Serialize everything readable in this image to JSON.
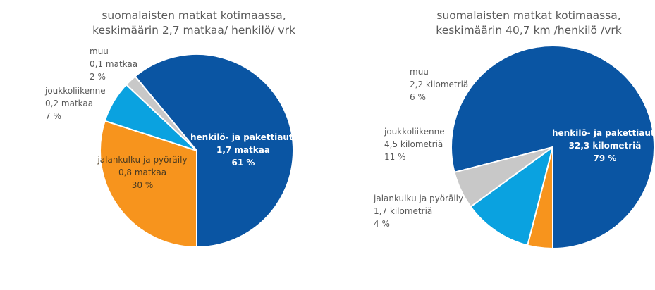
{
  "chart_data": [
    {
      "type": "pie",
      "title": [
        "suomalaisten matkat kotimaassa,",
        "keskimäärin 2,7 matkaa/ henkilö/ vrk"
      ],
      "categories": [
        "henkilö- ja pakettiauto",
        "jalankulku ja pyöräily",
        "joukkoliikenne",
        "muu"
      ],
      "values": [
        61,
        30,
        7,
        2
      ],
      "labels": [
        [
          "henkilö- ja pakettiauto",
          "1,7 matkaa",
          "61 %"
        ],
        [
          "jalankulku ja pyöräily",
          "0,8 matkaa",
          "30 %"
        ],
        [
          "joukkoliikenne",
          "0,2 matkaa",
          "7 %"
        ],
        [
          "muu",
          "0,1 matkaa",
          "2 %"
        ]
      ],
      "colors": [
        "#0a55a3",
        "#f7941d",
        "#0aa2e0",
        "#c8c8c8"
      ]
    },
    {
      "type": "pie",
      "title": [
        "suomalaisten matkat kotimaassa,",
        "keskimäärin 40,7 km /henkilö /vrk"
      ],
      "categories": [
        "henkilö- ja pakettiauto",
        "jalankulku ja pyöräily",
        "joukkoliikenne",
        "muu"
      ],
      "values": [
        79,
        4,
        11,
        6
      ],
      "labels": [
        [
          "henkilö- ja pakettiauto",
          "32,3 kilometriä",
          "79 %"
        ],
        [
          "jalankulku ja pyöräily",
          "1,7 kilometriä",
          "4 %"
        ],
        [
          "joukkoliikenne",
          "4,5 kilometriä",
          "11 %"
        ],
        [
          "muu",
          "2,2 kilometriä",
          "6 %"
        ]
      ],
      "colors": [
        "#0a55a3",
        "#f7941d",
        "#0aa2e0",
        "#c8c8c8"
      ]
    }
  ]
}
